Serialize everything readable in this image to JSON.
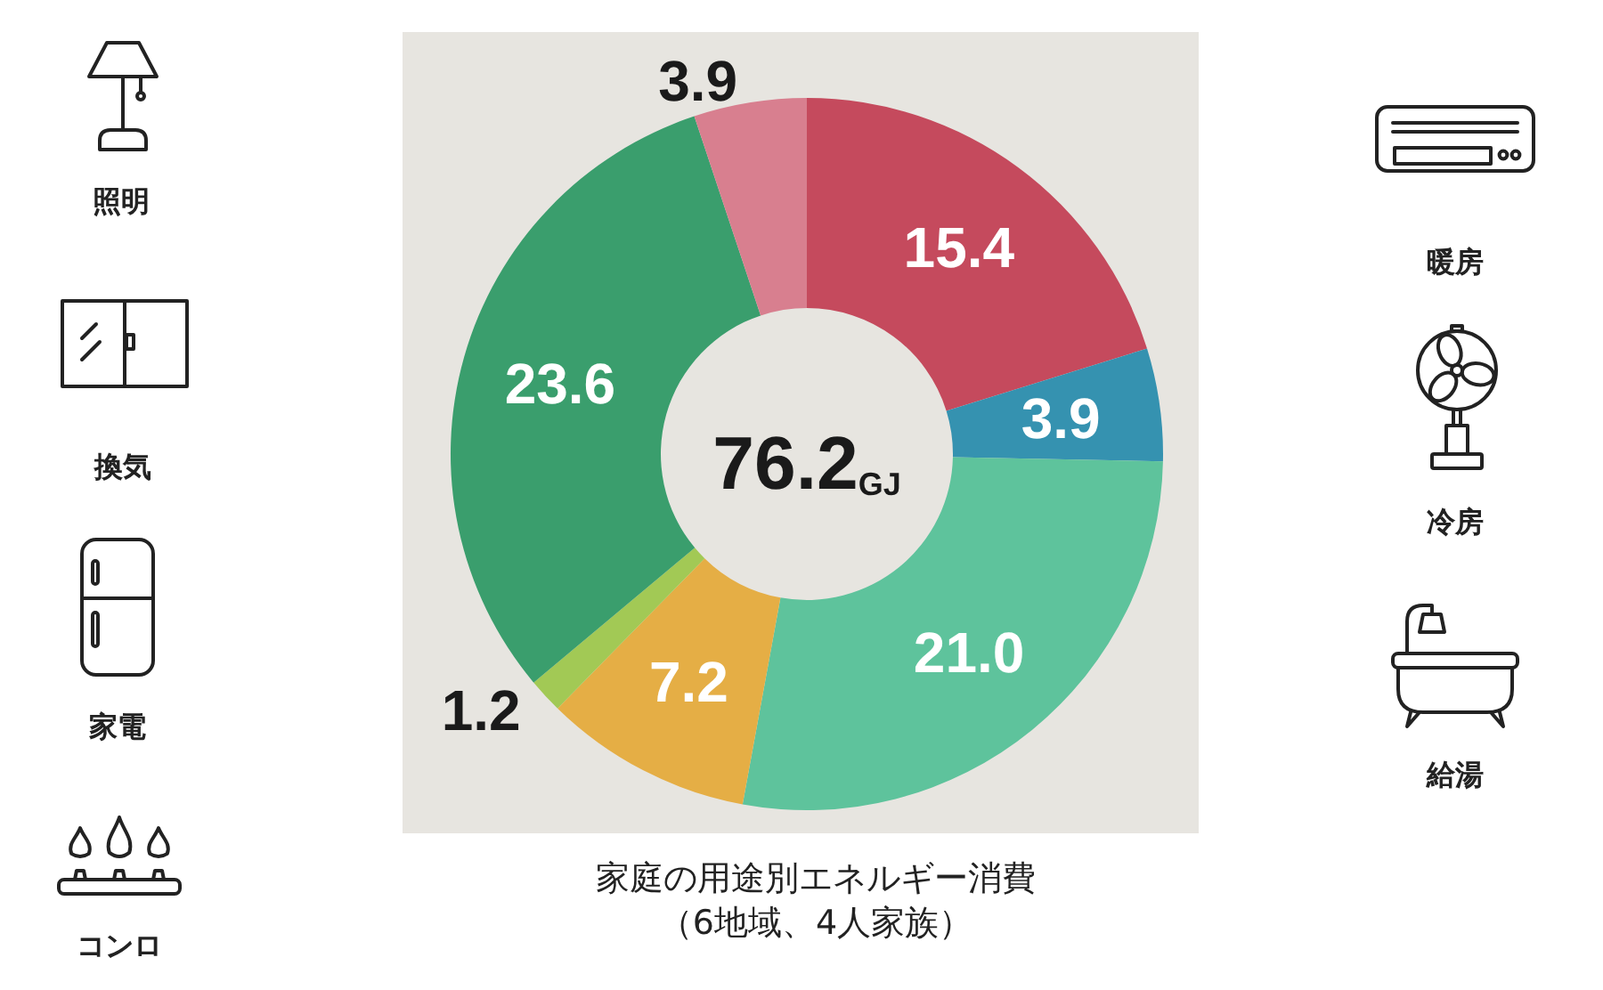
{
  "chart_data": {
    "type": "donut",
    "title": "家庭の用途別エネルギー消費",
    "subtitle": "（6地域、4人家族）",
    "categories": [
      null,
      null,
      null,
      null,
      null,
      null,
      null
    ],
    "values": [
      15.4,
      3.9,
      21.0,
      7.2,
      1.2,
      23.6,
      3.9
    ],
    "value_labels": [
      "15.4",
      "3.9",
      "21.0",
      "7.2",
      "1.2",
      "23.6",
      "3.9"
    ],
    "colors": [
      "#c54a5d",
      "#3592b0",
      "#5ec39c",
      "#e5ae45",
      "#a2c955",
      "#3a9e6d",
      "#d87f8f"
    ],
    "annotations": [
      "76.2GJ",
      "照明",
      "換気",
      "家電",
      "コンロ",
      "暖房",
      "冷房",
      "給湯"
    ]
  }
}
